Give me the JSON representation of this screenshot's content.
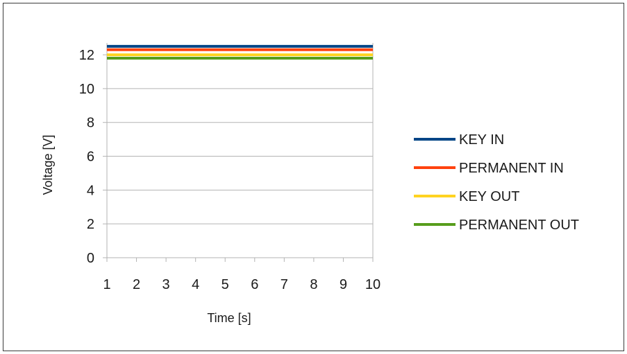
{
  "chart_data": {
    "type": "line",
    "title": "",
    "xlabel": "Time [s]",
    "ylabel": "Voltage [V]",
    "x": [
      1,
      2,
      3,
      4,
      5,
      6,
      7,
      8,
      9,
      10
    ],
    "xlim": [
      1,
      10
    ],
    "ylim": [
      0,
      12.7
    ],
    "yticks": [
      0,
      2,
      4,
      6,
      8,
      10,
      12
    ],
    "grid": true,
    "legend_position": "right",
    "series": [
      {
        "name": "KEY IN",
        "color": "#004586",
        "values": [
          12.5,
          12.5,
          12.5,
          12.5,
          12.5,
          12.5,
          12.5,
          12.5,
          12.5,
          12.5
        ]
      },
      {
        "name": "PERMANENT IN",
        "color": "#ff420e",
        "values": [
          12.3,
          12.3,
          12.3,
          12.3,
          12.3,
          12.3,
          12.3,
          12.3,
          12.3,
          12.3
        ]
      },
      {
        "name": "KEY OUT",
        "color": "#ffd320",
        "values": [
          12.0,
          12.0,
          12.0,
          12.0,
          12.0,
          12.0,
          12.0,
          12.0,
          12.0,
          12.0
        ]
      },
      {
        "name": "PERMANENT OUT",
        "color": "#579d1c",
        "values": [
          11.8,
          11.8,
          11.8,
          11.8,
          11.8,
          11.8,
          11.8,
          11.8,
          11.8,
          11.8
        ]
      }
    ]
  }
}
